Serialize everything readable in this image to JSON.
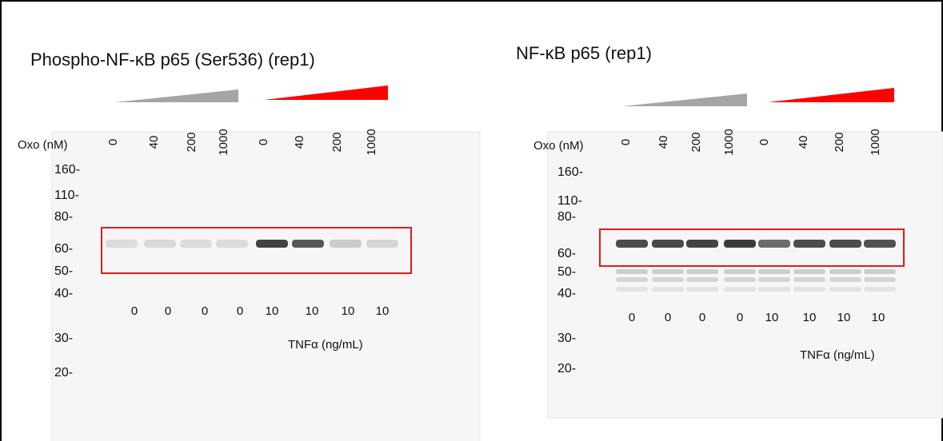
{
  "panels": [
    {
      "title": "Phospho-NF-κB p65 (Ser536) (rep1)",
      "oxo_label": "Oxo (nM)",
      "oxo_doses": [
        "0",
        "40",
        "200",
        "1000",
        "0",
        "40",
        "200",
        "1000"
      ],
      "markers": [
        "160-",
        "110-",
        "80-",
        "60-",
        "50-",
        "40-",
        "30-",
        "20-"
      ],
      "tnf_doses": [
        "0",
        "0",
        "0",
        "0",
        "10",
        "10",
        "10",
        "10"
      ],
      "tnf_label": "TNFα (ng/mL)"
    },
    {
      "title": "NF-κB p65 (rep1)",
      "oxo_label": "Oxo (nM)",
      "oxo_doses": [
        "0",
        "40",
        "200",
        "1000",
        "0",
        "40",
        "200",
        "1000"
      ],
      "markers": [
        "160-",
        "110-",
        "80-",
        "60-",
        "50-",
        "40-",
        "30-",
        "20-"
      ],
      "tnf_doses": [
        "0",
        "0",
        "0",
        "0",
        "10",
        "10",
        "10",
        "10"
      ],
      "tnf_label": "TNFα (ng/mL)"
    }
  ]
}
